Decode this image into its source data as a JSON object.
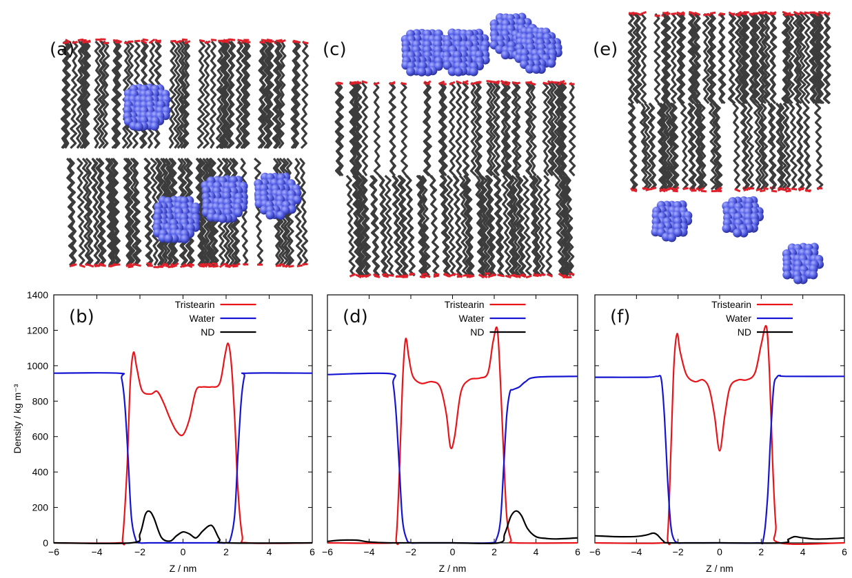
{
  "panels": [
    {
      "label": "(a)",
      "molecule_color": "#3c3c3c",
      "headgroup_color": "#e0202a",
      "nanodiamond_color": "#5560e6"
    },
    {
      "label": "(c)",
      "molecule_color": "#3c3c3c",
      "headgroup_color": "#e0202a",
      "nanodiamond_color": "#5560e6"
    },
    {
      "label": "(e)",
      "molecule_color": "#3c3c3c",
      "headgroup_color": "#e0202a",
      "nanodiamond_color": "#5560e6"
    }
  ],
  "chart_data": [
    {
      "type": "line",
      "panel_label": "(b)",
      "xlabel": "Z / nm",
      "ylabel": "Density / kg m⁻³",
      "xlim": [
        -6,
        6
      ],
      "ylim": [
        0,
        1400
      ],
      "xticks": [
        "−6",
        "−4",
        "−2",
        "0",
        "2",
        "4",
        "6"
      ],
      "yticks": [
        "0",
        "200",
        "400",
        "600",
        "800",
        "1000",
        "1200",
        "1400"
      ],
      "legend_position": "top-center",
      "series": [
        {
          "name": "Tristearin",
          "color": "#e8141a",
          "x": [
            -6,
            -3,
            -2.8,
            -2.6,
            -2.45,
            -2.3,
            -2.15,
            -1.9,
            -1.5,
            -1.2,
            -0.9,
            -0.6,
            -0.3,
            0,
            0.3,
            0.6,
            0.9,
            1.3,
            1.7,
            1.95,
            2.1,
            2.25,
            2.4,
            2.55,
            2.75,
            3,
            6
          ],
          "y": [
            0,
            0,
            30,
            420,
            900,
            1075,
            990,
            860,
            840,
            855,
            790,
            700,
            630,
            610,
            700,
            860,
            880,
            880,
            900,
            1060,
            1125,
            1000,
            700,
            300,
            40,
            0,
            0
          ]
        },
        {
          "name": "Water",
          "color": "#1414d2",
          "x": [
            -6,
            -3.0,
            -2.85,
            -2.7,
            -2.55,
            -2.4,
            -2.2,
            -2.0,
            -1.6,
            0,
            1.6,
            2.0,
            2.2,
            2.4,
            2.55,
            2.7,
            2.85,
            3.0,
            6
          ],
          "y": [
            958,
            958,
            930,
            780,
            480,
            150,
            20,
            0,
            0,
            0,
            0,
            0,
            20,
            160,
            500,
            800,
            940,
            958,
            958
          ]
        },
        {
          "name": "ND",
          "color": "#000000",
          "x": [
            -6,
            -2.4,
            -2.0,
            -1.75,
            -1.55,
            -1.35,
            -1.0,
            -0.6,
            -0.3,
            0,
            0.3,
            0.6,
            0.9,
            1.2,
            1.4,
            1.7,
            2.0,
            6
          ],
          "y": [
            0,
            0,
            50,
            160,
            178,
            140,
            30,
            10,
            40,
            62,
            50,
            28,
            65,
            96,
            90,
            20,
            0,
            0
          ]
        }
      ]
    },
    {
      "type": "line",
      "panel_label": "(d)",
      "xlabel": "Z / nm",
      "xlim": [
        -6,
        6
      ],
      "ylim": [
        0,
        1400
      ],
      "xticks": [
        "−6",
        "−4",
        "−2",
        "0",
        "2",
        "4",
        "6"
      ],
      "legend_position": "top-center",
      "series": [
        {
          "name": "Tristearin",
          "color": "#e8141a",
          "x": [
            -6,
            -2.9,
            -2.7,
            -2.55,
            -2.4,
            -2.25,
            -2.1,
            -1.9,
            -1.5,
            -1.0,
            -0.6,
            -0.3,
            -0.1,
            0.1,
            0.4,
            0.8,
            1.3,
            1.7,
            1.95,
            2.15,
            2.3,
            2.45,
            2.6,
            2.8,
            3.0,
            6
          ],
          "y": [
            0,
            0,
            30,
            400,
            900,
            1150,
            1050,
            940,
            900,
            910,
            880,
            730,
            540,
            600,
            850,
            920,
            930,
            960,
            1140,
            1205,
            900,
            500,
            150,
            20,
            0,
            0
          ]
        },
        {
          "name": "Water",
          "color": "#1414d2",
          "x": [
            -6,
            -3.0,
            -2.85,
            -2.7,
            -2.55,
            -2.4,
            -2.2,
            -2.0,
            -1.6,
            0,
            1.8,
            2.1,
            2.3,
            2.45,
            2.6,
            2.75,
            2.9,
            3.2,
            3.5,
            4.0,
            6
          ],
          "y": [
            950,
            955,
            900,
            720,
            420,
            130,
            20,
            0,
            0,
            0,
            0,
            20,
            130,
            420,
            720,
            850,
            865,
            880,
            910,
            935,
            940
          ]
        },
        {
          "name": "ND",
          "color": "#000000",
          "x": [
            -6,
            -5.5,
            -5.0,
            -4.5,
            -4.0,
            -3.0,
            -2.5,
            0,
            2.2,
            2.5,
            2.8,
            3.05,
            3.3,
            3.6,
            4.0,
            4.5,
            5.0,
            6
          ],
          "y": [
            8,
            14,
            16,
            14,
            5,
            0,
            0,
            0,
            0,
            50,
            150,
            180,
            155,
            80,
            35,
            25,
            22,
            28
          ]
        }
      ]
    },
    {
      "type": "line",
      "panel_label": "(f)",
      "xlabel": "Z / nm",
      "xlim": [
        -6,
        6
      ],
      "ylim": [
        0,
        1400
      ],
      "xticks": [
        "−6",
        "−4",
        "−2",
        "0",
        "2",
        "4",
        "6"
      ],
      "legend_position": "top-center",
      "series": [
        {
          "name": "Tristearin",
          "color": "#e8141a",
          "x": [
            -6,
            -2.7,
            -2.5,
            -2.35,
            -2.2,
            -2.05,
            -1.9,
            -1.6,
            -1.2,
            -0.8,
            -0.5,
            -0.25,
            0,
            0.25,
            0.5,
            0.9,
            1.3,
            1.7,
            2.0,
            2.25,
            2.4,
            2.55,
            2.7,
            2.9,
            6
          ],
          "y": [
            0,
            0,
            40,
            500,
            1000,
            1180,
            1080,
            950,
            910,
            920,
            870,
            720,
            520,
            720,
            880,
            920,
            920,
            960,
            1120,
            1220,
            950,
            450,
            100,
            0,
            0
          ]
        },
        {
          "name": "Water",
          "color": "#1414d2",
          "x": [
            -6,
            -3.5,
            -3.0,
            -2.8,
            -2.65,
            -2.5,
            -2.35,
            -2.2,
            -2.0,
            -1.7,
            0,
            1.8,
            2.1,
            2.3,
            2.45,
            2.6,
            2.75,
            2.9,
            3.2,
            6
          ],
          "y": [
            935,
            935,
            940,
            920,
            700,
            350,
            100,
            20,
            0,
            0,
            0,
            0,
            20,
            250,
            600,
            880,
            935,
            945,
            940,
            940
          ]
        },
        {
          "name": "ND",
          "color": "#000000",
          "x": [
            -6,
            -5.0,
            -4.0,
            -3.5,
            -3.2,
            -3.0,
            -2.7,
            -2.4,
            0,
            3.0,
            3.3,
            3.6,
            3.9,
            4.5,
            5.0,
            6
          ],
          "y": [
            40,
            35,
            36,
            45,
            55,
            45,
            10,
            0,
            0,
            0,
            20,
            35,
            30,
            22,
            22,
            28
          ]
        }
      ]
    }
  ]
}
